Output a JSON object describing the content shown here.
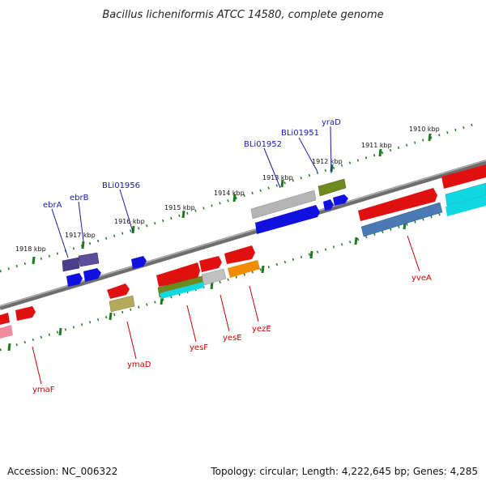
{
  "title": "Bacillus licheniformis ATCC 14580, complete genome",
  "accession": "Accession: NC_006322",
  "topology": "Topology: circular; Length: 4,222,645 bp; Genes: 4,285",
  "scale_labels": [
    "1918 kbp",
    "1917 kbp",
    "1916 kbp",
    "1915 kbp",
    "1914 kbp",
    "1913 kbp",
    "1912 kbp",
    "1911 kbp",
    "1910 kbp"
  ],
  "labels_top": [
    "ebrA",
    "ebrB",
    "BLi01956",
    "BLi01952",
    "BLi01951",
    "yraD"
  ],
  "labels_bottom": [
    "ymaF",
    "ymaD",
    "yesF",
    "yesE",
    "yezE",
    "yveA"
  ],
  "colors": {
    "top_label": "#1a1aa6",
    "bottom_label": "#cc0000",
    "backbone": "#808080",
    "ruler": "#1e7a1e",
    "gene_red": "#e01010",
    "gene_blue": "#1010e0",
    "gene_navy": "#4a3f8a",
    "gene_gray": "#b4b4b4",
    "gene_olive": "#6e8a1e",
    "gene_khaki": "#b4a85a",
    "gene_orange": "#f08c00",
    "gene_cyan": "#10d8e0",
    "gene_steel": "#4a7ab4",
    "gene_pink": "#f08ca0"
  }
}
